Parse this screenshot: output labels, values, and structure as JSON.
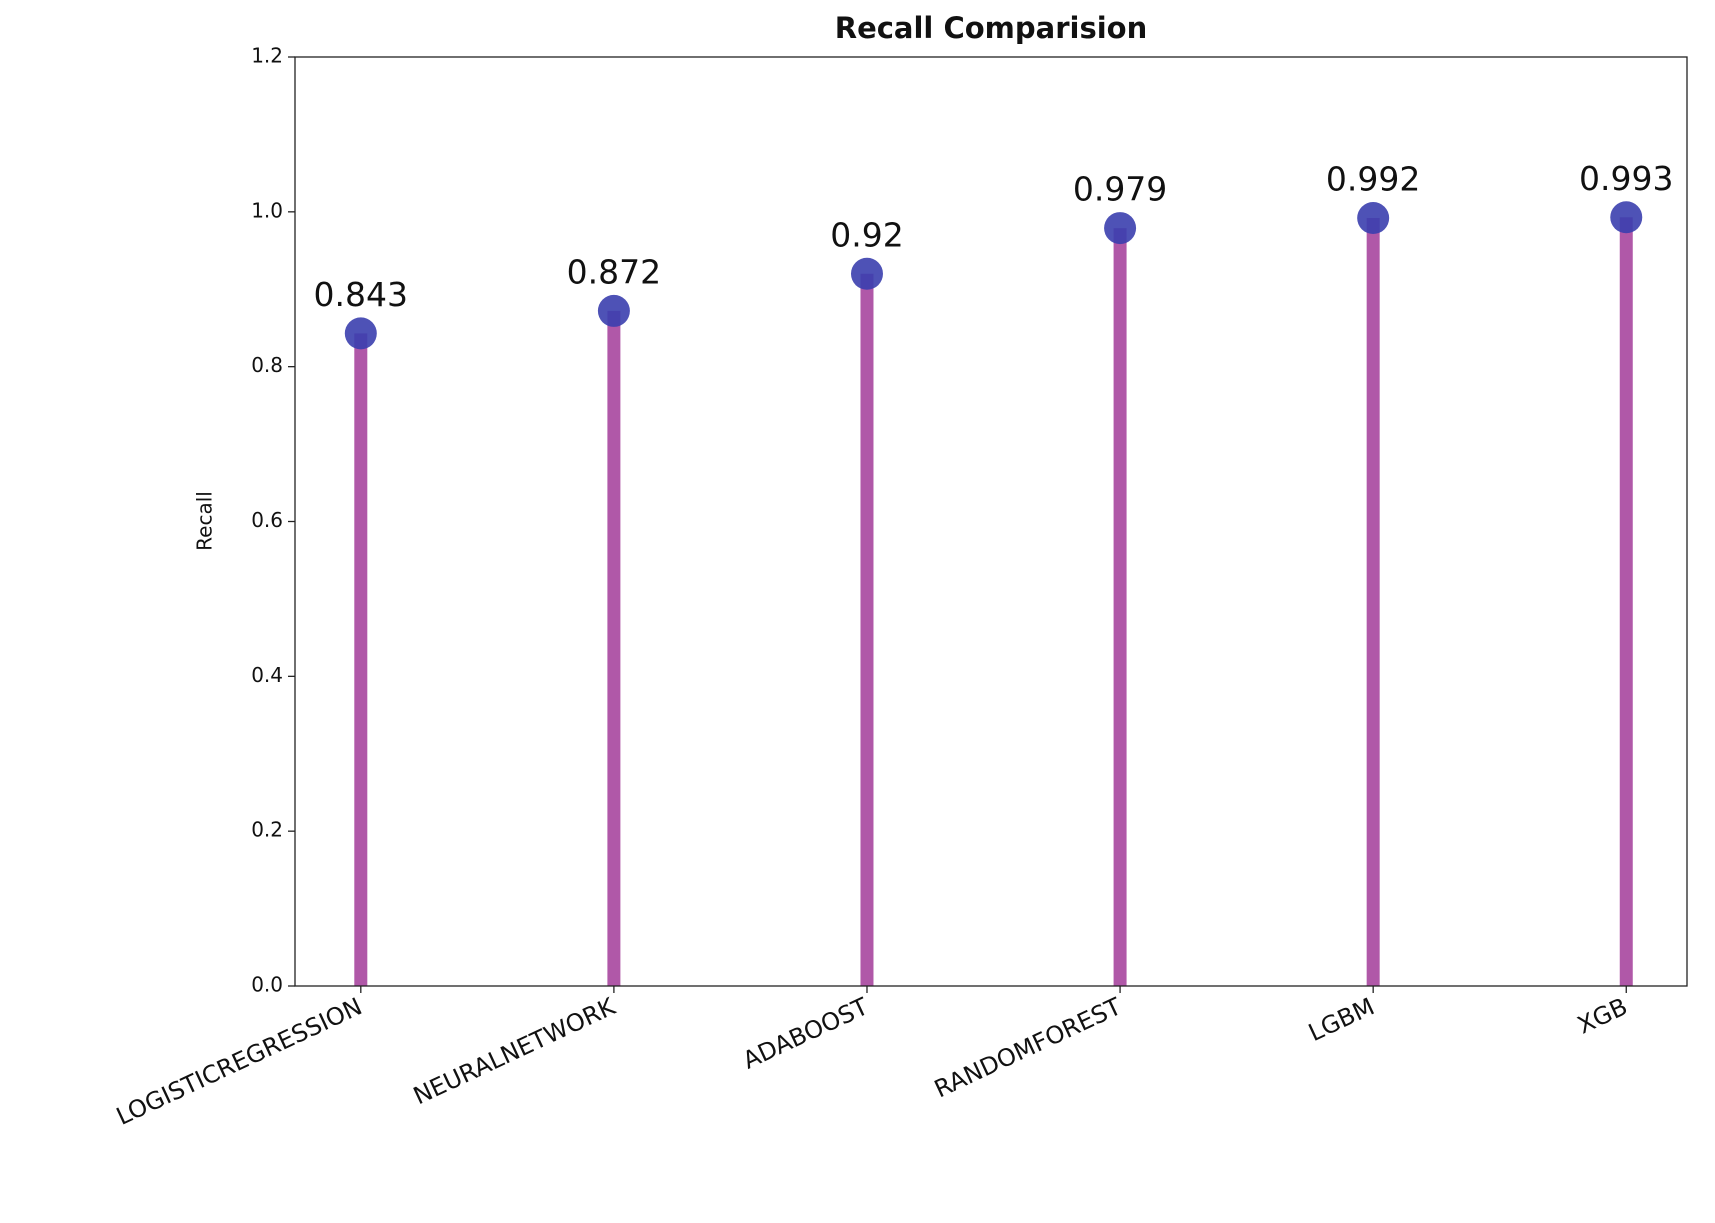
{
  "chart_data": {
    "type": "lollipop",
    "title": "Recall Comparision",
    "y_label": "Recall",
    "categories": [
      "LOGISTICREGRESSION",
      "NEURALNETWORK",
      "ADABOOST",
      "RANDOMFOREST",
      "LGBM",
      "XGB"
    ],
    "values": [
      0.843,
      0.872,
      0.92,
      0.979,
      0.992,
      0.993
    ],
    "stem_color": "#b058a8",
    "marker_color": "#3b3fae",
    "ylim": [
      0,
      1.2
    ],
    "yticks": [
      {
        "value": 0,
        "label": "0.0"
      },
      0.2,
      0.4,
      0.6,
      0.8,
      {
        "value": 1,
        "label": "1.0"
      },
      1.2
    ],
    "grid": false
  }
}
